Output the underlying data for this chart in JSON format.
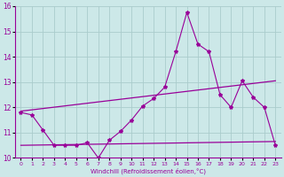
{
  "xlabel": "Windchill (Refroidissement éolien,°C)",
  "xlim": [
    -0.5,
    23.5
  ],
  "ylim": [
    10,
    16
  ],
  "yticks": [
    10,
    11,
    12,
    13,
    14,
    15,
    16
  ],
  "xticks": [
    0,
    1,
    2,
    3,
    4,
    5,
    6,
    7,
    8,
    9,
    10,
    11,
    12,
    13,
    14,
    15,
    16,
    17,
    18,
    19,
    20,
    21,
    22,
    23
  ],
  "bg_color": "#cce8e8",
  "line_color": "#990099",
  "grid_color": "#aacccc",
  "series1_x": [
    0,
    1,
    2,
    3,
    4,
    5,
    6,
    7,
    8,
    9,
    10,
    11,
    12,
    13,
    14,
    15,
    16,
    17,
    18,
    19,
    20,
    21,
    22,
    23
  ],
  "series1_y": [
    11.8,
    11.7,
    11.1,
    10.5,
    10.5,
    10.5,
    10.6,
    10.0,
    10.7,
    11.05,
    11.5,
    12.05,
    12.35,
    12.8,
    14.2,
    15.75,
    14.5,
    14.2,
    12.5,
    12.0,
    13.05,
    12.4,
    12.0,
    10.5
  ],
  "series2_x": [
    0,
    23
  ],
  "series2_y": [
    11.85,
    13.05
  ],
  "series3_x": [
    0,
    23
  ],
  "series3_y": [
    10.5,
    10.65
  ]
}
